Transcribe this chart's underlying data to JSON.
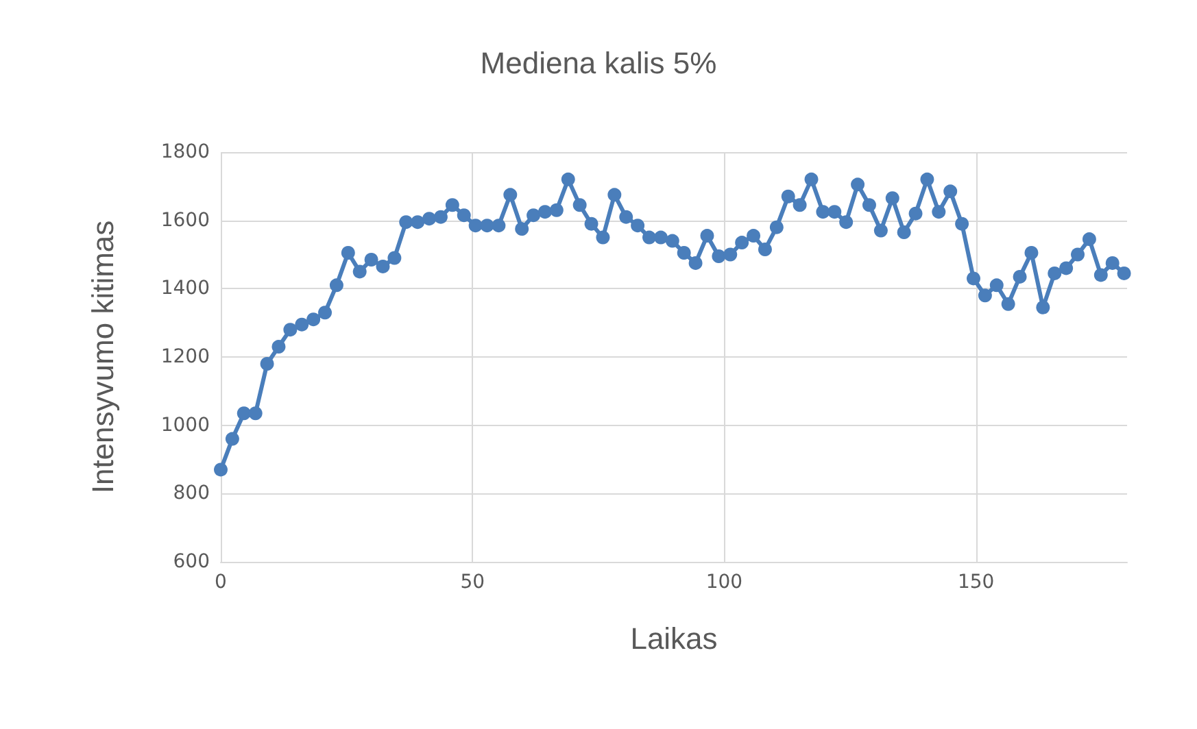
{
  "chart_data": {
    "type": "line",
    "title": "Mediena kalis 5%",
    "xlabel": "Laikas",
    "ylabel": "Intensyvumo kitimas",
    "x": [
      0,
      2.3,
      4.6,
      6.9,
      9.2,
      11.5,
      13.8,
      16.1,
      18.4,
      20.7,
      23,
      25.3,
      27.6,
      29.9,
      32.2,
      34.5,
      36.8,
      39.1,
      41.4,
      43.7,
      46,
      48.3,
      50.6,
      52.9,
      55.2,
      57.5,
      59.8,
      62.1,
      64.4,
      66.7,
      69,
      71.3,
      73.6,
      75.9,
      78.2,
      80.5,
      82.8,
      85.1,
      87.4,
      89.7,
      92,
      94.3,
      96.6,
      98.9,
      101.2,
      103.5,
      105.8,
      108.1,
      110.4,
      112.7,
      115,
      117.3,
      119.6,
      121.9,
      124.2,
      126.5,
      128.8,
      131.1,
      133.4,
      135.7,
      138,
      140.3,
      142.6,
      144.9,
      147.2,
      149.5,
      151.8,
      154.1,
      156.4,
      158.7,
      161,
      163.3,
      165.6,
      167.9,
      170.2,
      172.5,
      174.8,
      177.1,
      179.4
    ],
    "series": [
      {
        "color": "#4a7ebb",
        "values": [
          870,
          960,
          1035,
          1035,
          1180,
          1230,
          1280,
          1295,
          1310,
          1330,
          1410,
          1505,
          1450,
          1485,
          1465,
          1490,
          1595,
          1595,
          1605,
          1610,
          1645,
          1615,
          1585,
          1585,
          1585,
          1675,
          1575,
          1615,
          1625,
          1630,
          1720,
          1645,
          1590,
          1550,
          1675,
          1610,
          1585,
          1550,
          1550,
          1540,
          1505,
          1475,
          1555,
          1495,
          1500,
          1535,
          1555,
          1515,
          1580,
          1670,
          1645,
          1720,
          1625,
          1625,
          1595,
          1705,
          1645,
          1570,
          1665,
          1565,
          1620,
          1720,
          1625,
          1685,
          1590,
          1430,
          1380,
          1410,
          1355,
          1435,
          1505,
          1345,
          1445,
          1460,
          1500,
          1545,
          1440,
          1475,
          1445
        ]
      }
    ],
    "xlim": [
      0,
      180
    ],
    "xticks": [
      0,
      50,
      100,
      150
    ],
    "ylim": [
      600,
      1800
    ],
    "yticks": [
      600,
      800,
      1000,
      1200,
      1400,
      1600,
      1800
    ],
    "grid": true,
    "marker": "circle",
    "line_style": "solid"
  }
}
